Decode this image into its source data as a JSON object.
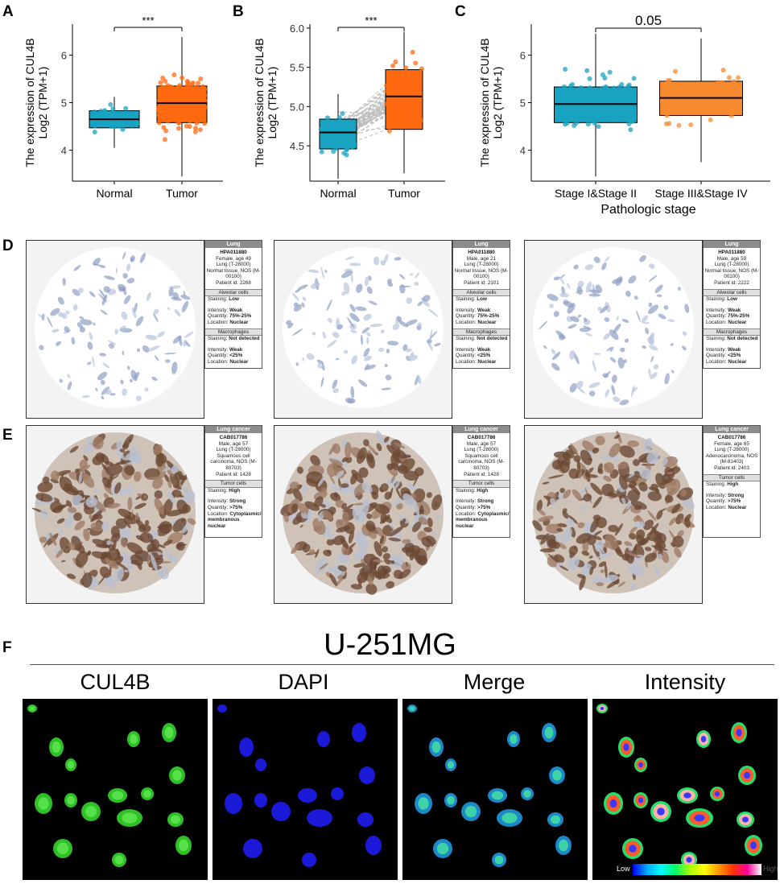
{
  "panel_labels": {
    "a": "A",
    "b": "B",
    "c": "C",
    "d": "D",
    "e": "E",
    "f": "F"
  },
  "colors": {
    "normal": "#1aa3c1",
    "tumor": "#ff6a10",
    "stage1": "#1aa3c1",
    "stage3": "#f7892f"
  },
  "chart_data": [
    {
      "type": "box",
      "ylabel_line1": "The expression of CUL4B",
      "ylabel_line2": "Log2 (TPM+1)",
      "categories": [
        "Normal",
        "Tumor"
      ],
      "yticks": [
        4,
        5,
        6
      ],
      "ylim": [
        3.35,
        6.65
      ],
      "boxes": [
        {
          "name": "Normal",
          "q1": 4.47,
          "median": 4.65,
          "q3": 4.83,
          "whisker_low": 4.05,
          "whisker_high": 5.12
        },
        {
          "name": "Tumor",
          "q1": 4.58,
          "median": 4.99,
          "q3": 5.35,
          "whisker_low": 3.45,
          "whisker_high": 6.38
        }
      ],
      "significance": "***"
    },
    {
      "type": "box",
      "ylabel_line1": "The expression of CUL4B",
      "ylabel_line2": "Log2 (TPM+1)",
      "categories": [
        "Normal",
        "Tumor"
      ],
      "yticks": [
        4.5,
        5.0,
        5.5,
        6.0
      ],
      "ytick_labels": [
        "4.5",
        "5.0",
        "5.5",
        "6.0"
      ],
      "ylim": [
        4.05,
        6.05
      ],
      "boxes": [
        {
          "name": "Normal",
          "q1": 4.46,
          "median": 4.67,
          "q3": 4.84,
          "whisker_low": 4.08,
          "whisker_high": 5.16
        },
        {
          "name": "Tumor",
          "q1": 4.71,
          "median": 5.13,
          "q3": 5.47,
          "whisker_low": 4.15,
          "whisker_high": 5.95
        }
      ],
      "paired": true,
      "significance": "***"
    },
    {
      "type": "box",
      "ylabel_line1": "The expression of CUL4B",
      "ylabel_line2": "Log2 (TPM+1)",
      "xlabel": "Pathologic stage",
      "categories": [
        "Stage I&Stage II",
        "Stage III&Stage IV"
      ],
      "yticks": [
        4,
        5,
        6
      ],
      "ylim": [
        3.35,
        6.65
      ],
      "boxes": [
        {
          "name": "Stage I&Stage II",
          "q1": 4.58,
          "median": 4.97,
          "q3": 5.33,
          "whisker_low": 3.45,
          "whisker_high": 6.45
        },
        {
          "name": "Stage III&Stage IV",
          "q1": 4.73,
          "median": 5.1,
          "q3": 5.45,
          "whisker_low": 3.75,
          "whisker_high": 6.35
        }
      ],
      "significance": "0.05"
    }
  ],
  "normal_tissue": [
    {
      "header": "Lung",
      "id": "HPA011880",
      "patient": [
        "Female, age 49",
        "Lung (T-28000)",
        "Normal tissue, NOS (M-",
        "00100)",
        "Patient id: 2268"
      ],
      "cell1": "Alveolar cells",
      "staining1": "Low",
      "intensity1": "Weak",
      "quantity1": "75%-25%",
      "location1": "Nuclear",
      "cell2": "Macrophages",
      "staining2": "Not detected",
      "intensity2": "Weak",
      "quantity2": "<25%",
      "location2": "Nuclear"
    },
    {
      "header": "Lung",
      "id": "HPA011880",
      "patient": [
        "Male, age 21",
        "Lung (T-28000)",
        "Normal tissue, NOS (M-",
        "00100)",
        "Patient id: 2101"
      ],
      "cell1": "Alveolar cells",
      "staining1": "Low",
      "intensity1": "Weak",
      "quantity1": "75%-25%",
      "location1": "Nuclear",
      "cell2": "Macrophages",
      "staining2": "Not detected",
      "intensity2": "Weak",
      "quantity2": "<25%",
      "location2": "Nuclear"
    },
    {
      "header": "Lung",
      "id": "HPA011880",
      "patient": [
        "Male, age 59",
        "Lung (T-28000)",
        "Normal tissue, NOS (M-",
        "00100)",
        "Patient id: 2222"
      ],
      "cell1": "Alveolar cells",
      "staining1": "Low",
      "intensity1": "Weak",
      "quantity1": "75%-25%",
      "location1": "Nuclear",
      "cell2": "Macrophages",
      "staining2": "Not detected",
      "intensity2": "Weak",
      "quantity2": "<25%",
      "location2": "Nuclear"
    }
  ],
  "cancer_tissue": [
    {
      "header": "Lung cancer",
      "id": "CAB017786",
      "patient": [
        "Male, age 57",
        "Lung (T-28000)",
        "Squamous cell",
        "carcinoma, NOS (M-",
        "80703)",
        "Patient id: 1428"
      ],
      "cell": "Tumor cells",
      "staining": "High",
      "intensity": "Strong",
      "quantity": ">75%",
      "location_lines": [
        "Cytoplasmic/",
        "membranous",
        "nuclear"
      ]
    },
    {
      "header": "Lung cancer",
      "id": "CAB017786",
      "patient": [
        "Male, age 57",
        "Lung (T-28000)",
        "Squamous cell",
        "carcinoma, NOS (M-",
        "80703)",
        "Patient id: 1428"
      ],
      "cell": "Tumor cells",
      "staining": "High",
      "intensity": "Strong",
      "quantity": ">75%",
      "location_lines": [
        "Cytoplasmic/",
        "membranous",
        "nuclear"
      ]
    },
    {
      "header": "Lung cancer",
      "id": "CAB017786",
      "patient": [
        "Female, age 65",
        "Lung (T-28000)",
        "Adenocarcinoma, NOS",
        "(M-81403)",
        "Patient id: 2403"
      ],
      "cell": "Tumor cells",
      "staining": "High",
      "intensity": "Strong",
      "quantity": ">75%",
      "location_lines": [
        "Nuclear"
      ]
    }
  ],
  "labels": {
    "staining": "Staining:",
    "intensity": "Intensity:",
    "quantity": "Quantity:",
    "location": "Location:"
  },
  "if_panel": {
    "cell_line": "U-251MG",
    "channels": [
      "CUL4B",
      "DAPI",
      "Merge",
      "Intensity"
    ],
    "legend_low": "Low",
    "legend_high": "High"
  }
}
